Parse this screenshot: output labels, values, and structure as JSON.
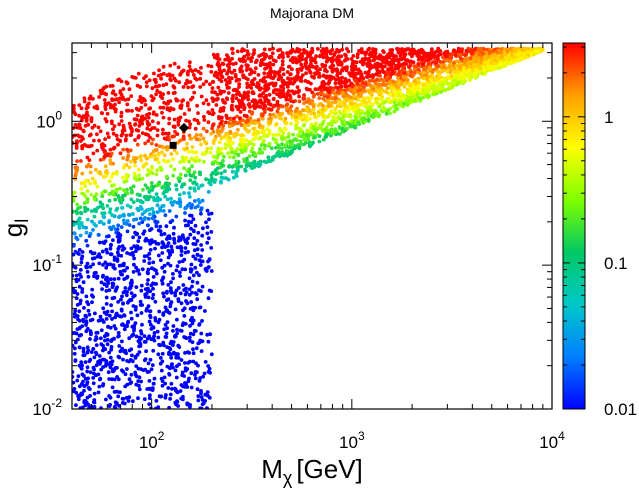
{
  "chart_data": {
    "type": "scatter",
    "title": "Majorana DM",
    "xlabel": {
      "main": "M",
      "sub": "χ",
      "unit": "[GeV]"
    },
    "ylabel": {
      "main": "g",
      "sub": "l"
    },
    "xscale": "log",
    "yscale": "log",
    "xlim": [
      40,
      10000
    ],
    "ylim": [
      0.01,
      3.5
    ],
    "x_tick_labels": [
      {
        "value": 100,
        "base": "10",
        "exp": "2"
      },
      {
        "value": 1000,
        "base": "10",
        "exp": "3"
      },
      {
        "value": 10000,
        "base": "10",
        "exp": "4"
      }
    ],
    "y_tick_labels": [
      {
        "value": 0.01,
        "base": "10",
        "exp": "-2"
      },
      {
        "value": 0.1,
        "base": "10",
        "exp": "-1"
      },
      {
        "value": 1,
        "base": "10",
        "exp": "0"
      }
    ],
    "colorbar": {
      "scale": "log",
      "range": [
        0.01,
        3.2
      ],
      "colormap": [
        "#0000ff",
        "#0080ff",
        "#00c8c8",
        "#00c864",
        "#80ff00",
        "#ffff00",
        "#ffa000",
        "#ff0000"
      ],
      "tick_labels": [
        {
          "value": 0.01,
          "label": "0.01"
        },
        {
          "value": 0.1,
          "label": "0.1"
        },
        {
          "value": 1,
          "label": "1"
        }
      ]
    },
    "point_cloud": {
      "description": "thousands of parameter-scan points coloured by relic-density value",
      "count": 5200,
      "region": "bounded below-right by the line from (200 GeV, 0.01) to (200 GeV, 0.35) to (9000 GeV, 3.1); top edge at g_l = 3.2"
    },
    "markers": [
      {
        "name": "benchmark-square",
        "shape": "square",
        "x": 128,
        "y": 0.68,
        "color": "#000000"
      },
      {
        "name": "benchmark-diamond",
        "shape": "diamond",
        "x": 145,
        "y": 0.9,
        "color": "#000000"
      }
    ]
  }
}
